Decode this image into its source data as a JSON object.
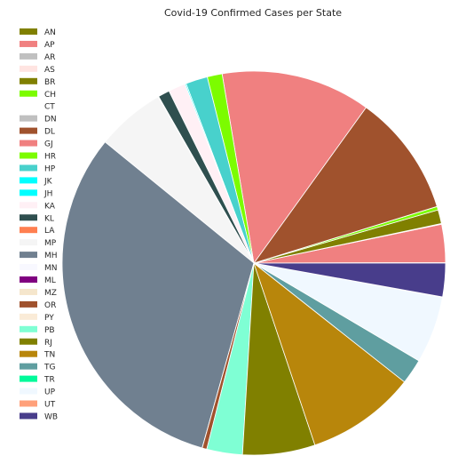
{
  "chart_data": {
    "type": "pie",
    "title": "Covid-19 Confirmed Cases per State",
    "legend_position": "left",
    "labels": [
      "AN",
      "AP",
      "AR",
      "AS",
      "BR",
      "CH",
      "CT",
      "DN",
      "DL",
      "GJ",
      "HR",
      "HP",
      "JK",
      "JH",
      "KA",
      "KL",
      "LA",
      "MP",
      "MH",
      "MN",
      "ML",
      "MZ",
      "OR",
      "PY",
      "PB",
      "RJ",
      "TN",
      "TG",
      "TR",
      "UP",
      "UT",
      "WB"
    ],
    "values": [
      0.05,
      3.3,
      0.0,
      0.06,
      1.2,
      0.3,
      0.01,
      0.0,
      10.6,
      13.0,
      1.3,
      1.9,
      0.0,
      0.1,
      1.5,
      1.0,
      0.05,
      6.0,
      32.5,
      0.01,
      0.0,
      0.0,
      0.4,
      0.0,
      3.1,
      6.3,
      9.5,
      2.2,
      0.01,
      5.8,
      0.05,
      2.9
    ],
    "colors": [
      "#808000",
      "#f08080",
      "#c0c0c0",
      "#ffe4e1",
      "#808000",
      "#7cfc00",
      "#ffffff",
      "#c0c0c0",
      "#a0522d",
      "#f08080",
      "#7cfc00",
      "#48d1cc",
      "#00ffff",
      "#00ffff",
      "#fff0f5",
      "#2f4f4f",
      "#ff7f50",
      "#f5f5f5",
      "#708090",
      "#f8f8ff",
      "#800080",
      "#f5e6cc",
      "#a0522d",
      "#faebd7",
      "#7fffd4",
      "#808000",
      "#b8860b",
      "#5f9ea0",
      "#00fa9a",
      "#f0f8ff",
      "#ffa07a",
      "#483d8b"
    ]
  }
}
